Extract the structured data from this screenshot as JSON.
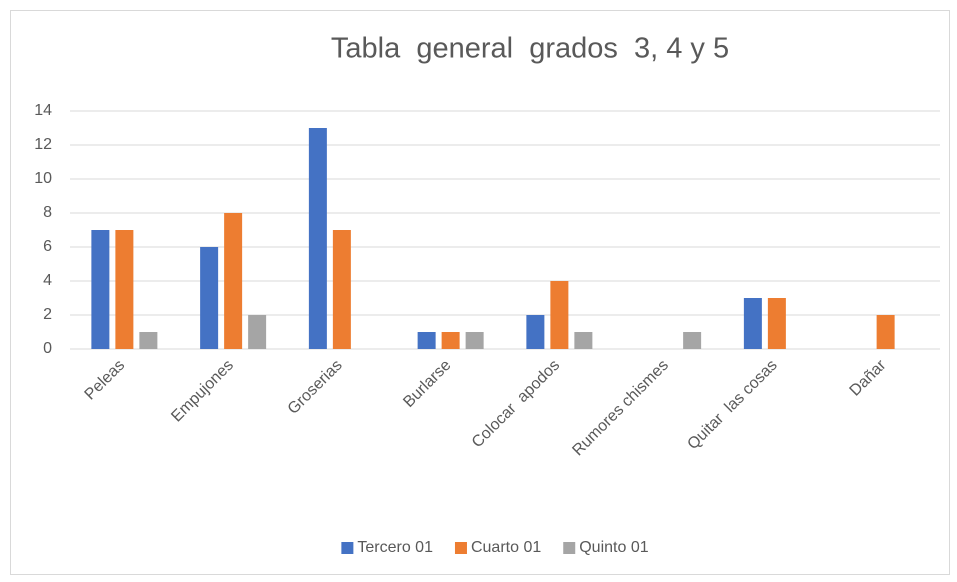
{
  "chart_data": {
    "type": "bar",
    "title": "Tabla  general  grados  3, 4 y 5",
    "categories": [
      "Peleas",
      "Empujones",
      "Groserias",
      "Burlarse",
      "Colocar  apodos",
      "Rumores chismes",
      "Quitar  las cosas",
      "Dañar"
    ],
    "series": [
      {
        "name": "Tercero 01",
        "color": "#4472c4",
        "values": [
          7,
          6,
          13,
          1,
          2,
          0,
          3,
          0
        ]
      },
      {
        "name": "Cuarto 01",
        "color": "#ed7d31",
        "values": [
          7,
          8,
          7,
          1,
          4,
          0,
          3,
          2
        ]
      },
      {
        "name": "Quinto 01",
        "color": "#a5a5a5",
        "values": [
          1,
          2,
          0,
          1,
          1,
          1,
          0,
          0
        ]
      }
    ],
    "ylim": [
      0,
      14
    ],
    "yticks": [
      0,
      2,
      4,
      6,
      8,
      10,
      12,
      14
    ],
    "grid": true,
    "legend": "bottom"
  }
}
